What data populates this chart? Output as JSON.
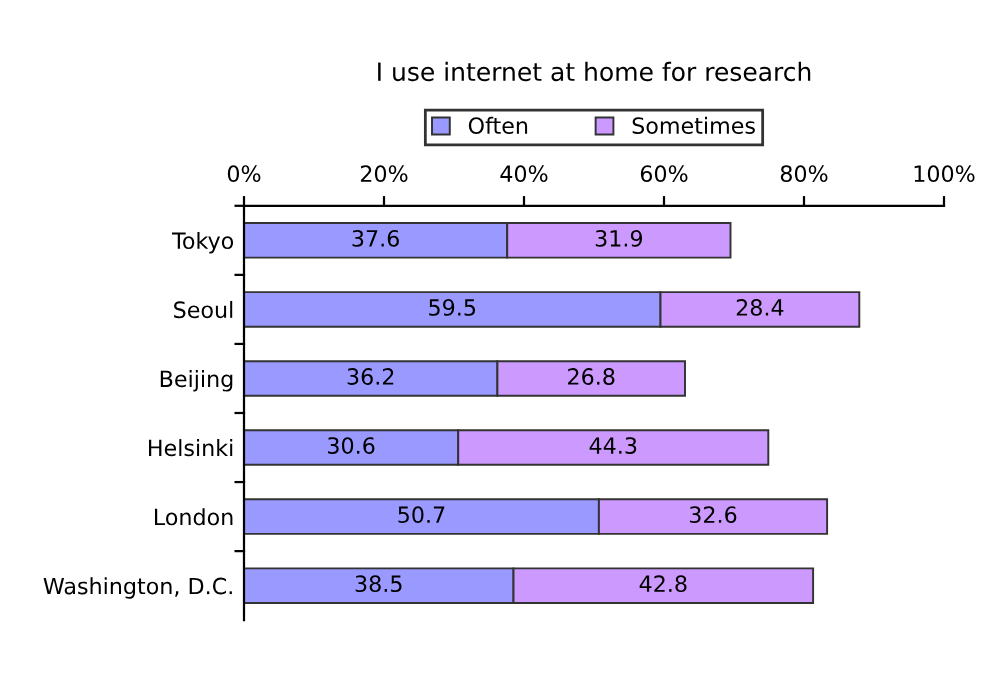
{
  "chart_data": {
    "type": "bar",
    "orientation": "horizontal",
    "stacked": true,
    "title": "I use internet at home for research",
    "categories": [
      "Tokyo",
      "Seoul",
      "Beijing",
      "Helsinki",
      "London",
      "Washington, D.C."
    ],
    "series": [
      {
        "name": "Often",
        "color": "#9999ff",
        "values": [
          37.6,
          59.5,
          36.2,
          30.6,
          50.7,
          38.5
        ]
      },
      {
        "name": "Sometimes",
        "color": "#cc99ff",
        "values": [
          31.9,
          28.4,
          26.8,
          44.3,
          32.6,
          42.8
        ]
      }
    ],
    "xlim": [
      0,
      100
    ],
    "xticks": [
      {
        "value": 0,
        "label": "0%"
      },
      {
        "value": 20,
        "label": "20%"
      },
      {
        "value": 40,
        "label": "40%"
      },
      {
        "value": 60,
        "label": "60%"
      },
      {
        "value": 80,
        "label": "80%"
      },
      {
        "value": 100,
        "label": "100%"
      }
    ],
    "data_labels": true,
    "legend": "top",
    "grid": false
  }
}
